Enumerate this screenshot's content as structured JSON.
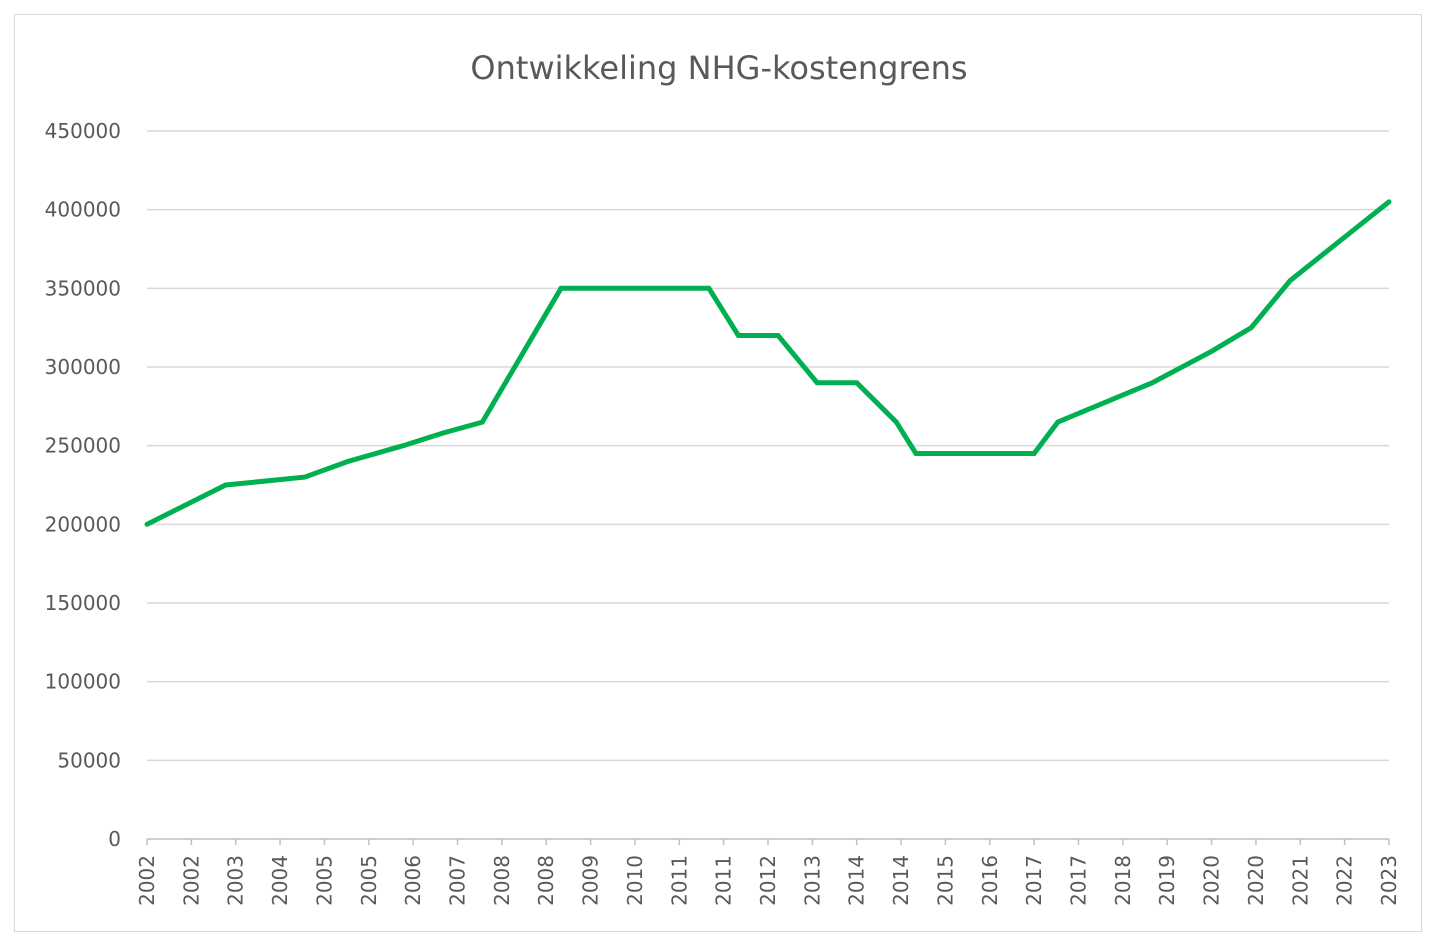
{
  "chart_data": {
    "type": "line",
    "title": "Ontwikkeling NHG-kostengrens",
    "xlabel": "",
    "ylabel": "",
    "ylim": [
      0,
      450000
    ],
    "yticks": [
      0,
      50000,
      100000,
      150000,
      200000,
      250000,
      300000,
      350000,
      400000,
      450000
    ],
    "ytick_labels": [
      "0",
      "50000",
      "100000",
      "150000",
      "200000",
      "250000",
      "300000",
      "350000",
      "400000",
      "450000"
    ],
    "grid": true,
    "legend": "none",
    "categories": [
      "2002",
      "2002",
      "2003",
      "2004",
      "2005",
      "2005",
      "2006",
      "2007",
      "2008",
      "2008",
      "2009",
      "2010",
      "2011",
      "2011",
      "2012",
      "2013",
      "2014",
      "2014",
      "2015",
      "2016",
      "2017",
      "2017",
      "2018",
      "2019",
      "2020",
      "2020",
      "2021",
      "2022",
      "2023"
    ],
    "series": [
      {
        "color": "#00b050",
        "points": [
          {
            "x": 2002.0,
            "y": 200000
          },
          {
            "x": 2003.33,
            "y": 225000
          },
          {
            "x": 2004.67,
            "y": 230000
          },
          {
            "x": 2005.4,
            "y": 240000
          },
          {
            "x": 2006.33,
            "y": 250000
          },
          {
            "x": 2007.0,
            "y": 258000
          },
          {
            "x": 2007.67,
            "y": 265000
          },
          {
            "x": 2009.0,
            "y": 350000
          },
          {
            "x": 2011.5,
            "y": 350000
          },
          {
            "x": 2012.0,
            "y": 320000
          },
          {
            "x": 2012.67,
            "y": 320000
          },
          {
            "x": 2013.33,
            "y": 290000
          },
          {
            "x": 2014.0,
            "y": 290000
          },
          {
            "x": 2014.67,
            "y": 265000
          },
          {
            "x": 2015.0,
            "y": 245000
          },
          {
            "x": 2017.0,
            "y": 245000
          },
          {
            "x": 2017.4,
            "y": 265000
          },
          {
            "x": 2019.0,
            "y": 290000
          },
          {
            "x": 2020.0,
            "y": 310000
          },
          {
            "x": 2020.67,
            "y": 325000
          },
          {
            "x": 2021.33,
            "y": 355000
          },
          {
            "x": 2023.0,
            "y": 405000
          }
        ]
      }
    ]
  }
}
